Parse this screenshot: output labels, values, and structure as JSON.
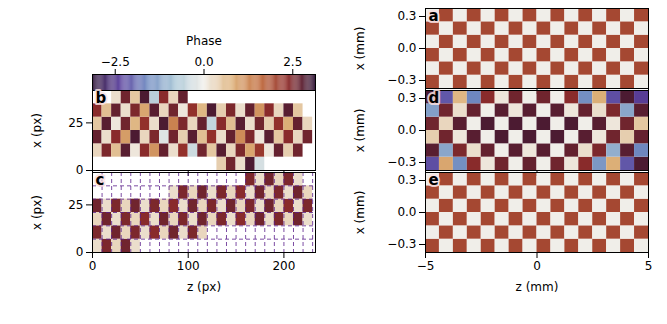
{
  "chart_data": [
    {
      "type": "colorbar",
      "label": "Phase",
      "range": [
        -3.14,
        3.14
      ],
      "ticks": [
        {
          "value": -2.5,
          "label": "−2.5"
        },
        {
          "value": 0,
          "label": "0.0"
        },
        {
          "value": 2.5,
          "label": "2.5"
        }
      ]
    },
    {
      "type": "heatmap",
      "label": "b",
      "ylabel": "x (px)",
      "tick_labels": "y",
      "xlim": [
        0,
        233
      ],
      "xticks": [
        0,
        100,
        200
      ],
      "ylim": [
        0,
        42
      ],
      "yticks": [
        0,
        25
      ],
      "x_edges": [
        0,
        10,
        20,
        30,
        40,
        50,
        60,
        70,
        80,
        90,
        100,
        110,
        120,
        130,
        140,
        150,
        160,
        170,
        180,
        190,
        200,
        210,
        220,
        230
      ],
      "y_edges": [
        0,
        7,
        14,
        21,
        28,
        35,
        42
      ],
      "values": [
        [
          null,
          null,
          null,
          null,
          null,
          null,
          null,
          null,
          null,
          null,
          null,
          null,
          null,
          0.4,
          2.6,
          0.2,
          2.9,
          -0.3,
          null,
          null,
          null,
          null,
          null
        ],
        [
          0.3,
          2.5,
          0.6,
          2.8,
          0.1,
          2.4,
          1.1,
          2.7,
          0.2,
          2.3,
          -0.4,
          2.6,
          0.5,
          2.8,
          0.3,
          2.5,
          0.9,
          2.2,
          0.1,
          2.7,
          0.4,
          2.6,
          null
        ],
        [
          2.7,
          0.2,
          2.4,
          1.0,
          2.9,
          0.3,
          2.5,
          -0.2,
          2.6,
          0.4,
          2.8,
          0.6,
          2.3,
          0.2,
          2.7,
          1.2,
          2.5,
          0.1,
          2.8,
          0.5,
          2.4,
          0.3,
          2.6
        ],
        [
          0.5,
          2.8,
          0.1,
          2.6,
          0.7,
          2.3,
          0.2,
          2.9,
          1.3,
          2.5,
          0.3,
          2.7,
          -0.5,
          2.4,
          0.6,
          2.8,
          0.2,
          2.6,
          0.4,
          2.3,
          0.8,
          2.7,
          0.3
        ],
        [
          2.4,
          0.6,
          2.7,
          0.2,
          2.5,
          0.9,
          2.8,
          0.3,
          2.6,
          0.1,
          2.3,
          0.7,
          2.9,
          0.4,
          2.5,
          0.2,
          2.7,
          1.1,
          2.4,
          0.3,
          2.8,
          0.5,
          null
        ],
        [
          null,
          null,
          0.2,
          2.6,
          0.5,
          2.9,
          -0.6,
          2.4,
          0.3,
          2.7,
          null,
          null,
          null,
          null,
          null,
          null,
          null,
          null,
          null,
          null,
          null,
          null,
          null
        ]
      ]
    },
    {
      "type": "heatmap",
      "label": "c",
      "xlabel": "z (px)",
      "ylabel": "x (px)",
      "grid": true,
      "xlim": [
        0,
        233
      ],
      "xticks": [
        0,
        100,
        200
      ],
      "ylim": [
        0,
        42
      ],
      "yticks": [
        0,
        25
      ],
      "x_edges": [
        0,
        10,
        20,
        30,
        40,
        50,
        60,
        70,
        80,
        90,
        100,
        110,
        120,
        130,
        140,
        150,
        160,
        170,
        180,
        190,
        200,
        210,
        220,
        230
      ],
      "y_edges": [
        0,
        7,
        14,
        21,
        28,
        35,
        42
      ],
      "values": [
        [
          0.2,
          2.5,
          0.3,
          2.6,
          0.2,
          null,
          null,
          null,
          null,
          null,
          null,
          null,
          null,
          null,
          null,
          null,
          null,
          null,
          null,
          null,
          null,
          null,
          null
        ],
        [
          2.5,
          0.2,
          2.6,
          0.3,
          2.5,
          0.2,
          2.4,
          0.3,
          2.6,
          0.2,
          2.5,
          0.3,
          null,
          null,
          null,
          null,
          null,
          null,
          null,
          null,
          null,
          null,
          null
        ],
        [
          0.3,
          2.6,
          0.2,
          2.5,
          0.3,
          2.4,
          0.2,
          2.6,
          0.3,
          2.5,
          0.2,
          2.6,
          0.3,
          2.5,
          0.2,
          2.4,
          0.3,
          2.6,
          0.2,
          2.5,
          0.3,
          2.6,
          0.2
        ],
        [
          2.6,
          0.2,
          2.5,
          0.3,
          2.6,
          0.2,
          2.5,
          0.3,
          2.4,
          0.2,
          2.6,
          0.3,
          2.5,
          0.2,
          2.6,
          0.3,
          2.5,
          0.2,
          2.6,
          0.3,
          2.4,
          0.2,
          2.5
        ],
        [
          null,
          null,
          null,
          null,
          null,
          null,
          null,
          null,
          0.2,
          2.5,
          0.3,
          2.6,
          0.2,
          2.5,
          0.3,
          2.4,
          0.2,
          2.6,
          0.3,
          2.5,
          0.2,
          2.6,
          0.3
        ],
        [
          null,
          null,
          null,
          null,
          null,
          null,
          null,
          null,
          null,
          null,
          null,
          null,
          null,
          null,
          null,
          null,
          2.5,
          0.2,
          2.6,
          0.3,
          2.5,
          0.2,
          null
        ]
      ]
    },
    {
      "type": "heatmap",
      "label": "a",
      "ylabel": "x (mm)",
      "tick_labels": "y",
      "xlim": [
        -5,
        5
      ],
      "xticks": [
        {
          "value": -5,
          "label": "−5"
        },
        0,
        5
      ],
      "ylim": [
        -0.375,
        0.375
      ],
      "yticks": [
        {
          "value": -0.3,
          "label": "−0.3"
        },
        {
          "value": 0,
          "label": "0.0"
        },
        0.3
      ],
      "x_edges": [
        -5,
        -4.375,
        -3.75,
        -3.125,
        -2.5,
        -1.875,
        -1.25,
        -0.625,
        0,
        0.625,
        1.25,
        1.875,
        2.5,
        3.125,
        3.75,
        4.375,
        5
      ],
      "y_edges": [
        -0.375,
        -0.25,
        -0.125,
        0,
        0.125,
        0.25,
        0.375
      ],
      "values": [
        [
          2.0,
          0.0,
          2.0,
          0.0,
          2.0,
          0.0,
          2.0,
          0.0,
          2.0,
          0.0,
          2.0,
          0.0,
          2.0,
          0.0,
          2.0,
          0.0
        ],
        [
          0.0,
          2.0,
          0.0,
          2.0,
          0.0,
          2.0,
          0.0,
          2.0,
          0.0,
          2.0,
          0.0,
          2.0,
          0.0,
          2.0,
          0.0,
          2.0
        ],
        [
          2.0,
          0.0,
          2.0,
          0.0,
          2.0,
          0.0,
          2.0,
          0.0,
          2.0,
          0.0,
          2.0,
          0.0,
          2.0,
          0.0,
          2.0,
          0.0
        ],
        [
          0.0,
          2.0,
          0.0,
          2.0,
          0.0,
          2.0,
          0.0,
          2.0,
          0.0,
          2.0,
          0.0,
          2.0,
          0.0,
          2.0,
          0.0,
          2.0
        ],
        [
          2.0,
          0.0,
          2.0,
          0.0,
          2.0,
          0.0,
          2.0,
          0.0,
          2.0,
          0.0,
          2.0,
          0.0,
          2.0,
          0.0,
          2.0,
          0.0
        ],
        [
          0.0,
          2.0,
          0.0,
          2.0,
          0.0,
          2.0,
          0.0,
          2.0,
          0.0,
          2.0,
          0.0,
          2.0,
          0.0,
          2.0,
          0.0,
          2.0
        ]
      ]
    },
    {
      "type": "heatmap",
      "label": "d",
      "ylabel": "x (mm)",
      "tick_labels": "y",
      "xlim": [
        -5,
        5
      ],
      "xticks": [
        {
          "value": -5,
          "label": "−5"
        },
        0,
        5
      ],
      "ylim": [
        -0.375,
        0.375
      ],
      "yticks": [
        {
          "value": -0.3,
          "label": "−0.3"
        },
        {
          "value": 0,
          "label": "0.0"
        },
        0.3
      ],
      "x_edges": [
        -5,
        -4.375,
        -3.75,
        -3.125,
        -2.5,
        -1.875,
        -1.25,
        -0.625,
        0,
        0.625,
        1.25,
        1.875,
        2.5,
        3.125,
        3.75,
        4.375,
        5
      ],
      "y_edges": [
        -0.375,
        -0.25,
        -0.125,
        0,
        0.125,
        0.25,
        0.375
      ],
      "values": [
        [
          -2.2,
          0.9,
          -1.5,
          2.4,
          0.1,
          2.6,
          0.0,
          2.7,
          0.0,
          2.6,
          0.1,
          2.4,
          -1.4,
          0.8,
          -2.1,
          2.9
        ],
        [
          2.8,
          -1.2,
          2.5,
          0.2,
          2.7,
          0.0,
          2.8,
          0.1,
          2.8,
          0.0,
          2.7,
          0.2,
          2.5,
          -1.1,
          2.8,
          -1.6
        ],
        [
          0.4,
          2.6,
          0.1,
          2.8,
          0.0,
          2.9,
          0.0,
          2.9,
          0.0,
          2.9,
          0.0,
          2.8,
          0.1,
          2.6,
          0.4,
          2.7
        ],
        [
          2.6,
          0.3,
          2.8,
          0.0,
          2.9,
          0.0,
          2.9,
          0.0,
          2.9,
          0.0,
          2.9,
          0.0,
          2.8,
          0.1,
          2.6,
          0.5
        ],
        [
          -1.3,
          2.6,
          0.2,
          2.7,
          0.0,
          2.8,
          0.1,
          2.8,
          0.0,
          2.8,
          0.1,
          2.7,
          0.2,
          2.5,
          -1.2,
          2.8
        ],
        [
          2.9,
          -2.1,
          0.7,
          -1.6,
          2.4,
          0.1,
          2.6,
          0.0,
          2.6,
          0.0,
          2.4,
          -1.5,
          0.8,
          -2.2,
          2.9,
          -2.4
        ]
      ]
    },
    {
      "type": "heatmap",
      "label": "e",
      "xlabel": "z (mm)",
      "ylabel": "x (mm)",
      "xlim": [
        -5,
        5
      ],
      "xticks": [
        {
          "value": -5,
          "label": "−5"
        },
        0,
        5
      ],
      "ylim": [
        -0.375,
        0.375
      ],
      "yticks": [
        {
          "value": -0.3,
          "label": "−0.3"
        },
        {
          "value": 0,
          "label": "0.0"
        },
        0.3
      ],
      "x_edges": [
        -5,
        -4.375,
        -3.75,
        -3.125,
        -2.5,
        -1.875,
        -1.25,
        -0.625,
        0,
        0.625,
        1.25,
        1.875,
        2.5,
        3.125,
        3.75,
        4.375,
        5
      ],
      "y_edges": [
        -0.375,
        -0.25,
        -0.125,
        0,
        0.125,
        0.25,
        0.375
      ],
      "values": [
        [
          2.0,
          0.0,
          2.0,
          0.0,
          2.0,
          0.0,
          2.0,
          0.0,
          2.0,
          0.0,
          2.0,
          0.0,
          2.0,
          0.0,
          2.0,
          0.0
        ],
        [
          0.0,
          2.0,
          0.0,
          2.0,
          0.0,
          2.0,
          0.0,
          2.0,
          0.0,
          2.0,
          0.0,
          2.0,
          0.0,
          2.0,
          0.0,
          2.0
        ],
        [
          2.0,
          0.0,
          2.0,
          0.0,
          2.0,
          0.0,
          2.0,
          0.0,
          2.0,
          0.0,
          2.0,
          0.0,
          2.0,
          0.0,
          2.0,
          0.0
        ],
        [
          0.0,
          2.0,
          0.0,
          2.0,
          0.0,
          2.0,
          0.0,
          2.0,
          0.0,
          2.0,
          0.0,
          2.0,
          0.0,
          2.0,
          0.0,
          2.0
        ],
        [
          2.0,
          0.0,
          2.0,
          0.0,
          2.0,
          0.0,
          2.0,
          0.0,
          2.0,
          0.0,
          2.0,
          0.0,
          2.0,
          0.0,
          2.0,
          0.0
        ],
        [
          0.0,
          2.0,
          0.0,
          2.0,
          0.0,
          2.0,
          0.0,
          2.0,
          0.0,
          2.0,
          0.0,
          2.0,
          0.0,
          2.0,
          0.0,
          2.0
        ]
      ]
    }
  ]
}
